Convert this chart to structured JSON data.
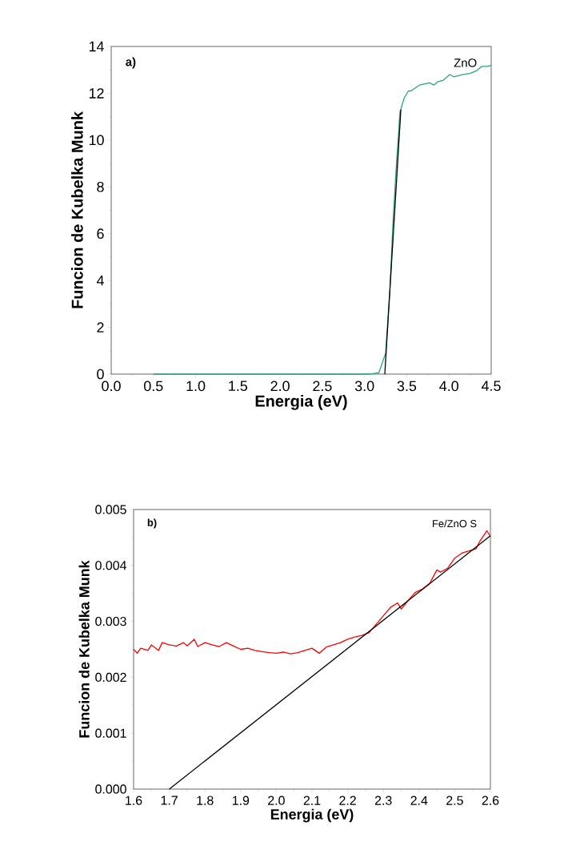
{
  "chart_data": [
    {
      "type": "line",
      "xlabel": "Energia (eV)",
      "ylabel": "Funcion de Kubelka Munk",
      "annotations": [
        "a)",
        "ZnO"
      ],
      "xlim": [
        0,
        4.5
      ],
      "ylim": [
        0,
        14
      ],
      "xticks": [
        {
          "value": 0,
          "label": "0.0"
        },
        {
          "value": 0.5,
          "label": "0.5"
        },
        {
          "value": 1,
          "label": "1.0"
        },
        {
          "value": 1.5,
          "label": "1.5"
        },
        {
          "value": 2,
          "label": "2.0"
        },
        {
          "value": 2.5,
          "label": "2.5"
        },
        {
          "value": 3,
          "label": "3.0"
        },
        {
          "value": 3.5,
          "label": "3.5"
        },
        {
          "value": 4,
          "label": "4.0"
        },
        {
          "value": 4.5,
          "label": "4.5"
        }
      ],
      "yticks": [
        0,
        2,
        4,
        6,
        8,
        10,
        12,
        14
      ],
      "series": [
        {
          "color": "#2aa57a",
          "x": [
            0.5,
            1.0,
            1.5,
            2.0,
            2.5,
            3.0,
            3.1,
            3.17,
            3.25,
            3.3,
            3.34,
            3.38,
            3.42,
            3.47,
            3.52,
            3.55,
            3.65,
            3.77,
            3.82,
            3.87,
            3.93,
            4.01,
            4.06,
            4.16,
            4.25,
            4.32,
            4.39,
            4.46,
            4.5
          ],
          "values": [
            0,
            0,
            0,
            0,
            0,
            0,
            0.02,
            0.06,
            0.9,
            3.6,
            6.7,
            9.1,
            11.2,
            11.8,
            12.1,
            12.1,
            12.35,
            12.45,
            12.35,
            12.5,
            12.55,
            12.8,
            12.7,
            12.8,
            12.85,
            12.95,
            13.15,
            13.15,
            13.2
          ]
        },
        {
          "color": "#000000",
          "x": [
            3.24,
            3.43
          ],
          "values": [
            0,
            11.3
          ]
        }
      ]
    },
    {
      "type": "line",
      "xlabel": "Energia (eV)",
      "ylabel": "Funcion de Kubelka Munk",
      "annotations": [
        "b)",
        "Fe/ZnO S"
      ],
      "xlim": [
        1.6,
        2.6
      ],
      "ylim": [
        0,
        0.005
      ],
      "xticks": [
        1.6,
        1.7,
        1.8,
        1.9,
        {
          "value": 2,
          "label": "2.0"
        },
        2.1,
        2.2,
        2.3,
        2.4,
        2.5,
        2.6
      ],
      "yticks": [
        {
          "value": 0,
          "label": "0.000"
        },
        0.001,
        0.002,
        0.003,
        0.004,
        0.005
      ],
      "series": [
        {
          "color": "#ff0000",
          "x": [
            1.6,
            1.61,
            1.62,
            1.64,
            1.65,
            1.67,
            1.68,
            1.7,
            1.72,
            1.74,
            1.75,
            1.77,
            1.78,
            1.8,
            1.82,
            1.84,
            1.86,
            1.88,
            1.9,
            1.92,
            1.94,
            1.96,
            1.98,
            2.0,
            2.02,
            2.04,
            2.06,
            2.08,
            2.1,
            2.12,
            2.14,
            2.16,
            2.18,
            2.2,
            2.22,
            2.24,
            2.26,
            2.28,
            2.3,
            2.32,
            2.34,
            2.35,
            2.37,
            2.39,
            2.41,
            2.43,
            2.45,
            2.46,
            2.48,
            2.5,
            2.52,
            2.54,
            2.56,
            2.57,
            2.59,
            2.6
          ],
          "values": [
            0.0025,
            0.00243,
            0.00252,
            0.00248,
            0.00258,
            0.00248,
            0.00262,
            0.00258,
            0.00256,
            0.00262,
            0.00256,
            0.00268,
            0.00255,
            0.00262,
            0.00258,
            0.00255,
            0.00262,
            0.00256,
            0.0025,
            0.00252,
            0.00248,
            0.00246,
            0.00244,
            0.00243,
            0.00245,
            0.00242,
            0.00244,
            0.00248,
            0.00252,
            0.00243,
            0.00254,
            0.00258,
            0.00262,
            0.00268,
            0.00272,
            0.00275,
            0.0028,
            0.00295,
            0.0031,
            0.00325,
            0.00333,
            0.00322,
            0.00338,
            0.00352,
            0.00358,
            0.00368,
            0.00392,
            0.00388,
            0.00395,
            0.00413,
            0.00422,
            0.00426,
            0.0043,
            0.00443,
            0.00462,
            0.00452
          ]
        },
        {
          "color": "#000000",
          "x": [
            1.7,
            2.6
          ],
          "values": [
            0,
            0.00453
          ]
        }
      ]
    }
  ]
}
